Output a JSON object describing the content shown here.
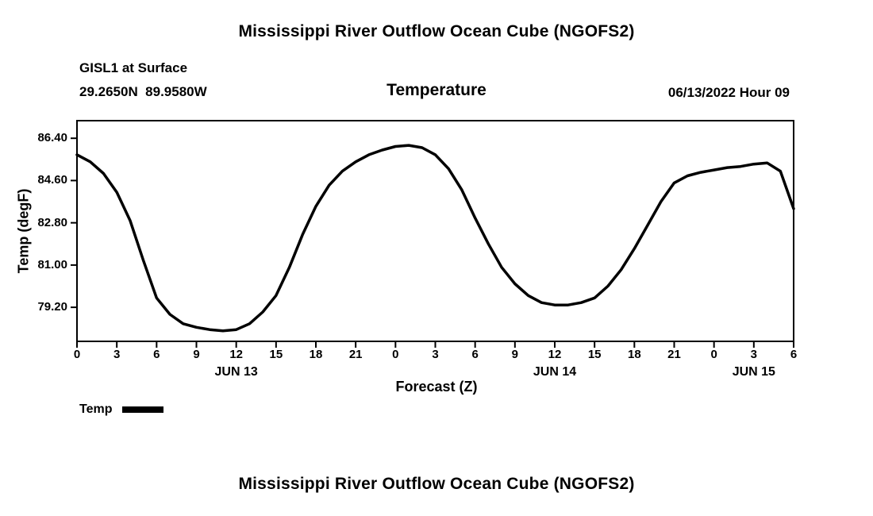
{
  "page": {
    "top_title": "Mississippi River Outflow Ocean Cube (NGOFS2)",
    "bottom_title": "Mississippi River Outflow Ocean Cube (NGOFS2)"
  },
  "header": {
    "station": "GISL1 at Surface",
    "coordinates": "29.2650N  89.9580W",
    "plot_title": "Temperature",
    "datestamp": "06/13/2022 Hour 09"
  },
  "legend": {
    "label": "Temp",
    "line_color": "#000000"
  },
  "chart_data": {
    "type": "line",
    "title": "Temperature",
    "xlabel": "Forecast (Z)",
    "ylabel": "Temp (degF)",
    "xlim": [
      0,
      54
    ],
    "ylim": [
      77.75,
      87.15
    ],
    "grid": false,
    "legend_position": "bottom-left",
    "line_color": "#000000",
    "line_width": 3.5,
    "x": [
      0,
      1,
      2,
      3,
      4,
      5,
      6,
      7,
      8,
      9,
      10,
      11,
      12,
      13,
      14,
      15,
      16,
      17,
      18,
      19,
      20,
      21,
      22,
      23,
      24,
      25,
      26,
      27,
      28,
      29,
      30,
      31,
      32,
      33,
      34,
      35,
      36,
      37,
      38,
      39,
      40,
      41,
      42,
      43,
      44,
      45,
      46,
      47,
      48,
      49,
      50,
      51,
      52,
      53,
      54
    ],
    "values": [
      85.7,
      85.4,
      84.9,
      84.1,
      82.9,
      81.2,
      79.6,
      78.9,
      78.5,
      78.35,
      78.25,
      78.2,
      78.25,
      78.5,
      79.0,
      79.7,
      80.9,
      82.3,
      83.5,
      84.4,
      85.0,
      85.4,
      85.7,
      85.9,
      86.05,
      86.1,
      86.0,
      85.7,
      85.1,
      84.2,
      83.0,
      81.9,
      80.9,
      80.2,
      79.7,
      79.4,
      79.3,
      79.3,
      79.4,
      79.6,
      80.1,
      80.8,
      81.7,
      82.7,
      83.7,
      84.5,
      84.8,
      84.95,
      85.05,
      85.15,
      85.2,
      85.3,
      85.35,
      85.0,
      83.4
    ],
    "x_ticks": [
      0,
      3,
      6,
      9,
      12,
      15,
      18,
      21,
      24,
      27,
      30,
      33,
      36,
      39,
      42,
      45,
      48,
      51,
      54
    ],
    "x_tick_labels": [
      "0",
      "3",
      "6",
      "9",
      "12",
      "15",
      "18",
      "21",
      "0",
      "3",
      "6",
      "9",
      "12",
      "15",
      "18",
      "21",
      "0",
      "3",
      "6"
    ],
    "y_ticks": [
      86.4,
      84.6,
      82.8,
      81.0,
      79.2
    ],
    "y_tick_labels": [
      "86.40",
      "84.60",
      "82.80",
      "81.00",
      "79.20"
    ],
    "date_labels": [
      {
        "label": "JUN 13",
        "hour": 12
      },
      {
        "label": "JUN 14",
        "hour": 36
      },
      {
        "label": "JUN 15",
        "hour": 51
      }
    ],
    "series_name": "Temp"
  }
}
